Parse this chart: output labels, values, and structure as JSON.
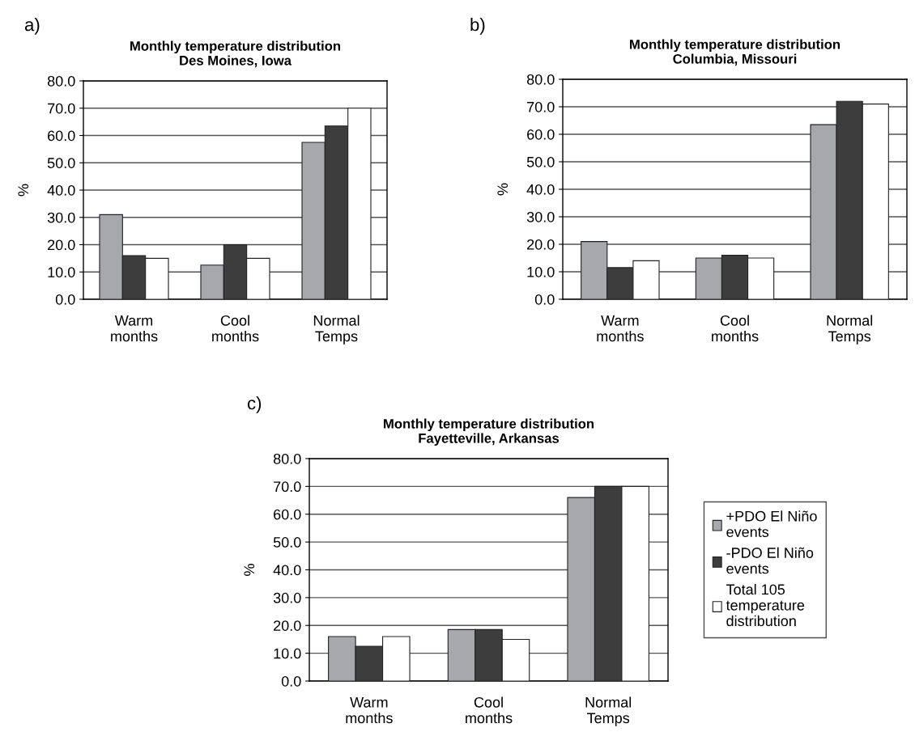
{
  "chart_data": [
    {
      "type": "bar",
      "title": "Monthly temperature distribution\nDes Moines, Iowa",
      "ylabel": "%",
      "annotations": [
        "a)"
      ],
      "categories": [
        "Warm\nmonths",
        "Cool\nmonths",
        "Normal\nTemps"
      ],
      "series": [
        {
          "color": "#a7a8ab",
          "values": [
            31,
            12.5,
            57.5
          ]
        },
        {
          "color": "#3d3d3d",
          "values": [
            16,
            20,
            63.5
          ]
        },
        {
          "color": "#ffffff",
          "values": [
            15,
            15,
            70
          ]
        }
      ],
      "ylim": [
        0,
        80
      ],
      "yticks": [
        {
          "value": 0,
          "label": "0.0"
        },
        {
          "value": 10,
          "label": "10.0"
        },
        {
          "value": 20,
          "label": "20.0"
        },
        {
          "value": 30,
          "label": "30.0"
        },
        {
          "value": 40,
          "label": "40.0"
        },
        {
          "value": 50,
          "label": "50.0"
        },
        {
          "value": 60,
          "label": "60.0"
        },
        {
          "value": 70,
          "label": "70.0"
        },
        {
          "value": 80,
          "label": "80.0"
        }
      ],
      "grid": "y",
      "legend": false
    },
    {
      "type": "bar",
      "title": "Monthly temperature distribution\nColumbia, Missouri",
      "ylabel": "%",
      "annotations": [
        "b)"
      ],
      "categories": [
        "Warm\nmonths",
        "Cool\nmonths",
        "Normal\nTemps"
      ],
      "series": [
        {
          "color": "#a7a8ab",
          "values": [
            21,
            15,
            63.5
          ]
        },
        {
          "color": "#3d3d3d",
          "values": [
            11.5,
            16,
            72
          ]
        },
        {
          "color": "#ffffff",
          "values": [
            14,
            15,
            71
          ]
        }
      ],
      "ylim": [
        0,
        80
      ],
      "yticks": [
        {
          "value": 0,
          "label": "0.0"
        },
        {
          "value": 10,
          "label": "10.0"
        },
        {
          "value": 20,
          "label": "20.0"
        },
        {
          "value": 30,
          "label": "30.0"
        },
        {
          "value": 40,
          "label": "40.0"
        },
        {
          "value": 50,
          "label": "50.0"
        },
        {
          "value": 60,
          "label": "60.0"
        },
        {
          "value": 70,
          "label": "70.0"
        },
        {
          "value": 80,
          "label": "80.0"
        }
      ],
      "grid": "y",
      "legend": false
    },
    {
      "type": "bar",
      "title": "Monthly temperature distribution\nFayetteville, Arkansas",
      "ylabel": "%",
      "annotations": [
        "c)"
      ],
      "categories": [
        "Warm\nmonths",
        "Cool\nmonths",
        "Normal\nTemps"
      ],
      "series": [
        {
          "name": "+PDO El Niño\nevents",
          "color": "#a7a8ab",
          "values": [
            16,
            18.5,
            66
          ]
        },
        {
          "name": "-PDO El Niño\nevents",
          "color": "#3d3d3d",
          "values": [
            12.5,
            18.5,
            70
          ]
        },
        {
          "name": "Total 105\ntemperature\ndistribution",
          "color": "#ffffff",
          "values": [
            16,
            15,
            70
          ]
        }
      ],
      "ylim": [
        0,
        80
      ],
      "yticks": [
        {
          "value": 0,
          "label": "0.0"
        },
        {
          "value": 10,
          "label": "10.0"
        },
        {
          "value": 20,
          "label": "20.0"
        },
        {
          "value": 30,
          "label": "30.0"
        },
        {
          "value": 40,
          "label": "40.0"
        },
        {
          "value": 50,
          "label": "50.0"
        },
        {
          "value": 60,
          "label": "60.0"
        },
        {
          "value": 70,
          "label": "70.0"
        },
        {
          "value": 80,
          "label": "80.0"
        }
      ],
      "grid": "y",
      "legend": "right"
    }
  ]
}
